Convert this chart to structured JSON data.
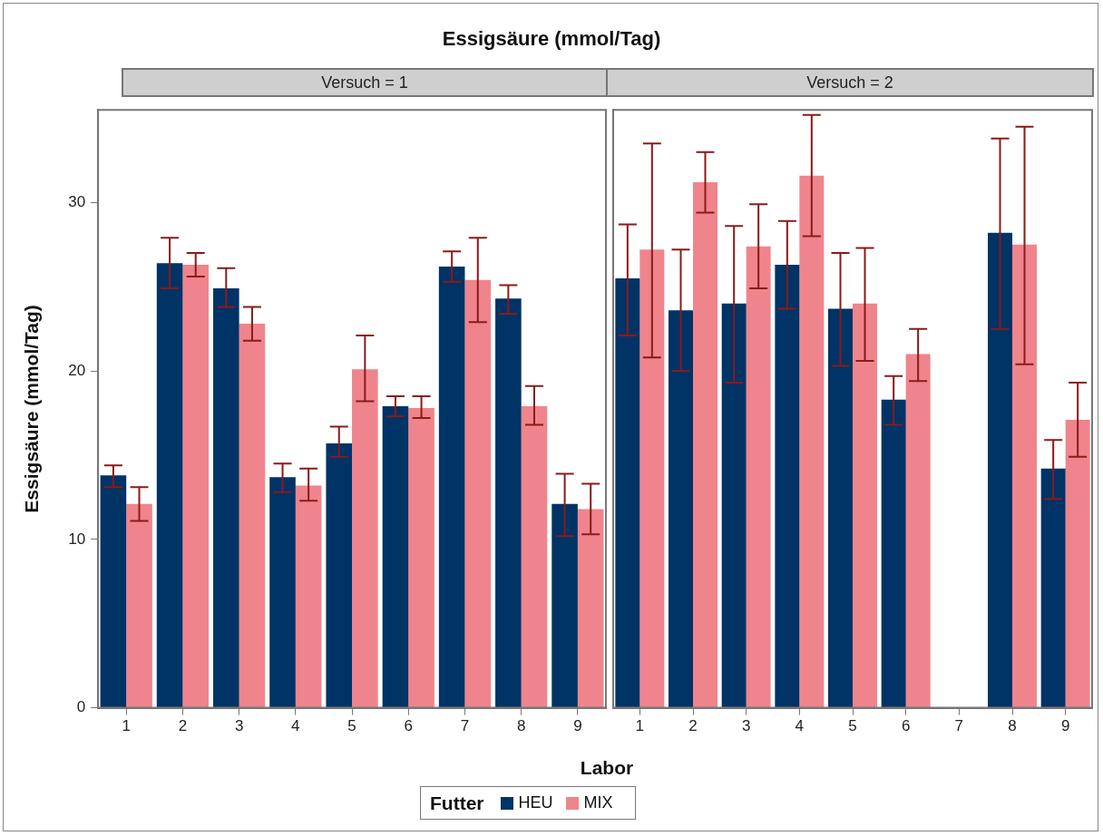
{
  "chart_data": [
    {
      "type": "bar",
      "title": "Essigsäure (mmol/Tag)",
      "subtitle": "Versuch = 1",
      "xlabel": "Labor",
      "ylabel": "Essigsäure (mmol/Tag)",
      "legend_title": "Futter",
      "legend": "bottom",
      "grid": false,
      "categories": [
        "1",
        "2",
        "3",
        "4",
        "5",
        "6",
        "7",
        "8",
        "9"
      ],
      "ylim": [
        0,
        35.5
      ],
      "yticks": [
        0,
        10,
        20,
        30
      ],
      "series": [
        {
          "name": "HEU",
          "color": "#003366",
          "values": [
            13.8,
            26.4,
            24.9,
            13.7,
            15.7,
            17.9,
            26.2,
            24.3,
            12.1
          ],
          "errors": [
            [
              13.1,
              14.4
            ],
            [
              24.9,
              27.9
            ],
            [
              23.8,
              26.1
            ],
            [
              12.8,
              14.5
            ],
            [
              14.9,
              16.7
            ],
            [
              17.3,
              18.5
            ],
            [
              25.3,
              27.1
            ],
            [
              23.4,
              25.1
            ],
            [
              10.2,
              13.9
            ]
          ]
        },
        {
          "name": "MIX",
          "color": "#f0848c",
          "values": [
            12.1,
            26.3,
            22.8,
            13.2,
            20.1,
            17.8,
            25.4,
            17.9,
            11.8
          ],
          "errors": [
            [
              11.1,
              13.1
            ],
            [
              25.6,
              27.0
            ],
            [
              21.8,
              23.8
            ],
            [
              12.3,
              14.2
            ],
            [
              18.2,
              22.1
            ],
            [
              17.2,
              18.5
            ],
            [
              22.9,
              27.9
            ],
            [
              16.8,
              19.1
            ],
            [
              10.3,
              13.3
            ]
          ]
        }
      ]
    },
    {
      "type": "bar",
      "subtitle": "Versuch = 2",
      "grid": false,
      "tick_labels": "x",
      "categories": [
        "1",
        "2",
        "3",
        "4",
        "5",
        "6",
        "7",
        "8",
        "9"
      ],
      "ylim": [
        0,
        35.5
      ],
      "yticks": [
        0,
        10,
        20,
        30
      ],
      "series": [
        {
          "color": "#003366",
          "values": [
            25.5,
            23.6,
            24.0,
            26.3,
            23.7,
            18.3,
            null,
            28.2,
            14.2
          ],
          "errors": [
            [
              22.1,
              28.7
            ],
            [
              20.0,
              27.2
            ],
            [
              19.3,
              28.6
            ],
            [
              23.7,
              28.9
            ],
            [
              20.3,
              27.0
            ],
            [
              16.8,
              19.7
            ],
            null,
            [
              22.5,
              33.8
            ],
            [
              12.4,
              15.9
            ]
          ]
        },
        {
          "color": "#f0848c",
          "values": [
            27.2,
            31.2,
            27.4,
            31.6,
            24.0,
            21.0,
            null,
            27.5,
            17.1
          ],
          "errors": [
            [
              20.8,
              33.5
            ],
            [
              29.4,
              33.0
            ],
            [
              24.9,
              29.9
            ],
            [
              28.0,
              35.2
            ],
            [
              20.6,
              27.3
            ],
            [
              19.4,
              22.5
            ],
            null,
            [
              20.4,
              34.5
            ],
            [
              14.9,
              19.3
            ]
          ]
        }
      ]
    }
  ]
}
